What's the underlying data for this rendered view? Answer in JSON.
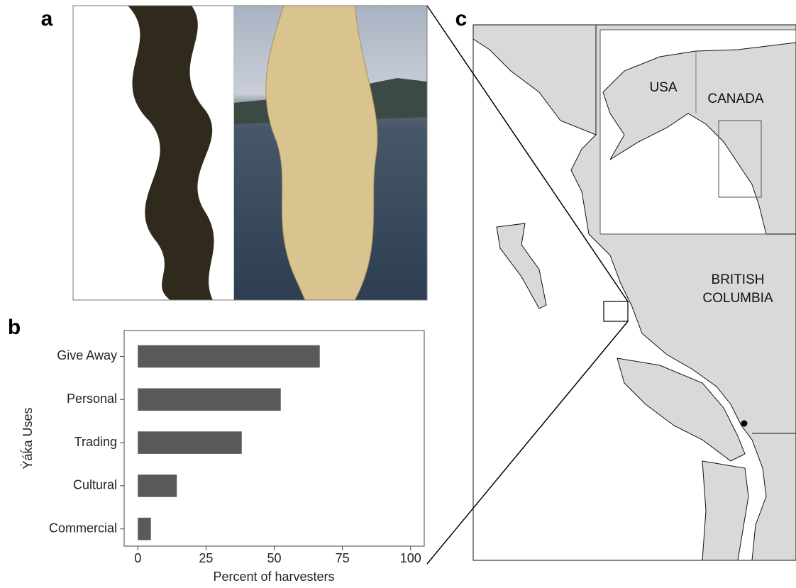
{
  "panel_labels": [
    "a",
    "b",
    "c"
  ],
  "chart_data": {
    "type": "bar",
    "orientation": "horizontal",
    "categories": [
      "Give Away",
      "Personal",
      "Trading",
      "Cultural",
      "Commercial"
    ],
    "values": [
      66.7,
      52.4,
      38.1,
      14.3,
      4.8
    ],
    "color": "#595959",
    "xlim": [
      -5,
      105
    ],
    "xticks": [
      0,
      25,
      50,
      75,
      100
    ],
    "xlabel": "Percent of harvesters",
    "ylabel": "Ẏáḱa Uses",
    "grid": false
  },
  "map": {
    "labels": [
      "USA",
      "CANADA",
      "BRITISH",
      "COLUMBIA"
    ]
  }
}
